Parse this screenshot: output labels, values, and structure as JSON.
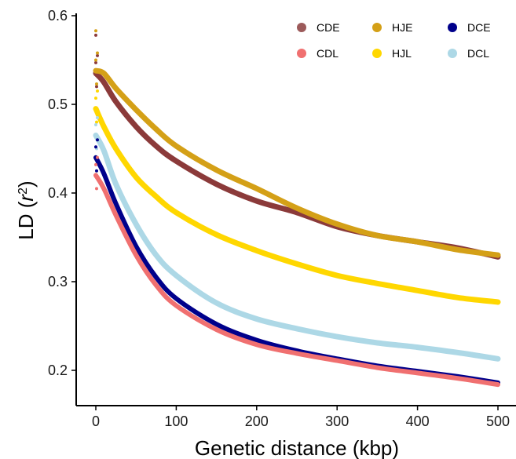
{
  "chart_data": {
    "type": "line",
    "xlabel": "Genetic distance (kbp)",
    "ylabel_main": "LD (",
    "ylabel_var": "r",
    "ylabel_sup": "2",
    "ylabel_close": ")",
    "xlim": [
      0,
      500
    ],
    "ylim": [
      0.16,
      0.6
    ],
    "xticks": [
      0,
      100,
      200,
      300,
      400,
      500
    ],
    "xtick_labels": [
      "0",
      "100",
      "200",
      "300",
      "400",
      "500"
    ],
    "yticks": [
      0.2,
      0.3,
      0.4,
      0.5,
      0.6
    ],
    "ytick_labels": [
      "0.2",
      "0.3",
      "0.4",
      "0.5",
      "0.6"
    ],
    "grid": false,
    "legend_position": "top-right",
    "x": [
      0,
      10,
      25,
      50,
      75,
      100,
      150,
      200,
      250,
      300,
      350,
      400,
      450,
      500
    ],
    "series": [
      {
        "name": "CDE",
        "color": "#8B3A3A",
        "width": 7,
        "values": [
          0.535,
          0.525,
          0.503,
          0.475,
          0.453,
          0.436,
          0.41,
          0.391,
          0.378,
          0.362,
          0.352,
          0.345,
          0.338,
          0.328
        ]
      },
      {
        "name": "HJE",
        "color": "#D4A017",
        "width": 7,
        "values": [
          0.538,
          0.535,
          0.518,
          0.494,
          0.472,
          0.453,
          0.426,
          0.405,
          0.383,
          0.365,
          0.352,
          0.345,
          0.336,
          0.33
        ]
      },
      {
        "name": "HJL",
        "color": "#FFD700",
        "width": 7,
        "values": [
          0.495,
          0.475,
          0.45,
          0.418,
          0.396,
          0.378,
          0.353,
          0.335,
          0.32,
          0.307,
          0.298,
          0.29,
          0.282,
          0.277
        ]
      },
      {
        "name": "DCL",
        "color": "#ADD8E6",
        "width": 7,
        "values": [
          0.465,
          0.448,
          0.41,
          0.365,
          0.33,
          0.307,
          0.276,
          0.258,
          0.247,
          0.238,
          0.231,
          0.226,
          0.22,
          0.213
        ]
      },
      {
        "name": "DCE",
        "color": "#00008B",
        "width": 6,
        "values": [
          0.44,
          0.422,
          0.388,
          0.34,
          0.305,
          0.281,
          0.252,
          0.234,
          0.222,
          0.213,
          0.205,
          0.199,
          0.193,
          0.186
        ]
      },
      {
        "name": "CDL",
        "color": "#F07070",
        "width": 6,
        "values": [
          0.42,
          0.405,
          0.375,
          0.33,
          0.296,
          0.273,
          0.246,
          0.229,
          0.219,
          0.211,
          0.203,
          0.197,
          0.191,
          0.184
        ]
      }
    ],
    "outlier_points": [
      {
        "x": 0,
        "y": 0.583,
        "color": "#D4A017"
      },
      {
        "x": 0,
        "y": 0.578,
        "color": "#8B3A3A"
      }
    ],
    "legend": [
      {
        "name": "CDE",
        "color": "#9C5A5A"
      },
      {
        "name": "HJE",
        "color": "#D4A017"
      },
      {
        "name": "DCE",
        "color": "#00008B"
      },
      {
        "name": "CDL",
        "color": "#F07070"
      },
      {
        "name": "HJL",
        "color": "#FFD700"
      },
      {
        "name": "DCL",
        "color": "#ADD8E6"
      }
    ]
  }
}
